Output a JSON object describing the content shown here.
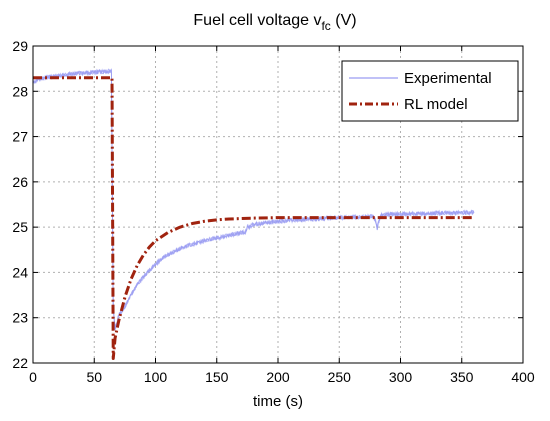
{
  "chart_data": {
    "type": "line",
    "title": {
      "main": "Fuel cell voltage v",
      "subscript": "fc",
      "unit": " (V)"
    },
    "xlabel": "time (s)",
    "ylabel": "",
    "xlim": [
      0,
      400
    ],
    "ylim": [
      22,
      29
    ],
    "xticks": [
      0,
      50,
      100,
      150,
      200,
      250,
      300,
      350,
      400
    ],
    "yticks": [
      22,
      23,
      24,
      25,
      26,
      27,
      28,
      29
    ],
    "grid": true,
    "grid_style": "dashed",
    "legend_position": "top-right",
    "series": [
      {
        "name": "Experimental",
        "color": "#9a9cf2",
        "style": "solid-noisy",
        "points": [
          [
            0,
            28.2
          ],
          [
            5,
            28.27
          ],
          [
            10,
            28.31
          ],
          [
            15,
            28.32
          ],
          [
            20,
            28.34
          ],
          [
            25,
            28.36
          ],
          [
            30,
            28.38
          ],
          [
            35,
            28.39
          ],
          [
            40,
            28.4
          ],
          [
            45,
            28.41
          ],
          [
            50,
            28.42
          ],
          [
            55,
            28.43
          ],
          [
            60,
            28.44
          ],
          [
            64,
            28.45
          ],
          [
            65.5,
            23.2
          ],
          [
            67,
            22.75
          ],
          [
            70,
            23.05
          ],
          [
            75,
            23.25
          ],
          [
            80,
            23.5
          ],
          [
            85,
            23.72
          ],
          [
            90,
            23.9
          ],
          [
            95,
            24.05
          ],
          [
            100,
            24.18
          ],
          [
            105,
            24.3
          ],
          [
            110,
            24.39
          ],
          [
            115,
            24.46
          ],
          [
            120,
            24.53
          ],
          [
            125,
            24.58
          ],
          [
            130,
            24.62
          ],
          [
            135,
            24.66
          ],
          [
            140,
            24.7
          ],
          [
            145,
            24.74
          ],
          [
            150,
            24.76
          ],
          [
            155,
            24.79
          ],
          [
            160,
            24.82
          ],
          [
            165,
            24.85
          ],
          [
            170,
            24.88
          ],
          [
            174,
            24.9
          ],
          [
            175,
            25.02
          ],
          [
            176,
            24.98
          ],
          [
            178,
            25.03
          ],
          [
            180,
            25.06
          ],
          [
            190,
            25.1
          ],
          [
            200,
            25.13
          ],
          [
            210,
            25.15
          ],
          [
            220,
            25.17
          ],
          [
            230,
            25.18
          ],
          [
            240,
            25.2
          ],
          [
            250,
            25.21
          ],
          [
            260,
            25.22
          ],
          [
            270,
            25.23
          ],
          [
            278,
            25.24
          ],
          [
            280,
            25.1
          ],
          [
            281,
            24.98
          ],
          [
            282,
            25.1
          ],
          [
            284,
            25.26
          ],
          [
            290,
            25.28
          ],
          [
            300,
            25.29
          ],
          [
            310,
            25.3
          ],
          [
            320,
            25.3
          ],
          [
            330,
            25.31
          ],
          [
            340,
            25.31
          ],
          [
            350,
            25.32
          ],
          [
            360,
            25.33
          ]
        ]
      },
      {
        "name": "RL model",
        "color": "#a0230f",
        "style": "dash-dot",
        "points": [
          [
            0,
            28.3
          ],
          [
            64,
            28.3
          ],
          [
            64.5,
            28.3
          ],
          [
            65.5,
            22.1
          ],
          [
            67,
            22.55
          ],
          [
            70,
            22.93
          ],
          [
            75,
            23.45
          ],
          [
            80,
            23.85
          ],
          [
            85,
            24.15
          ],
          [
            90,
            24.38
          ],
          [
            95,
            24.56
          ],
          [
            100,
            24.7
          ],
          [
            110,
            24.88
          ],
          [
            120,
            25.0
          ],
          [
            130,
            25.08
          ],
          [
            140,
            25.13
          ],
          [
            150,
            25.16
          ],
          [
            160,
            25.18
          ],
          [
            170,
            25.19
          ],
          [
            180,
            25.2
          ],
          [
            200,
            25.21
          ],
          [
            250,
            25.21
          ],
          [
            300,
            25.21
          ],
          [
            360,
            25.21
          ]
        ]
      }
    ]
  }
}
